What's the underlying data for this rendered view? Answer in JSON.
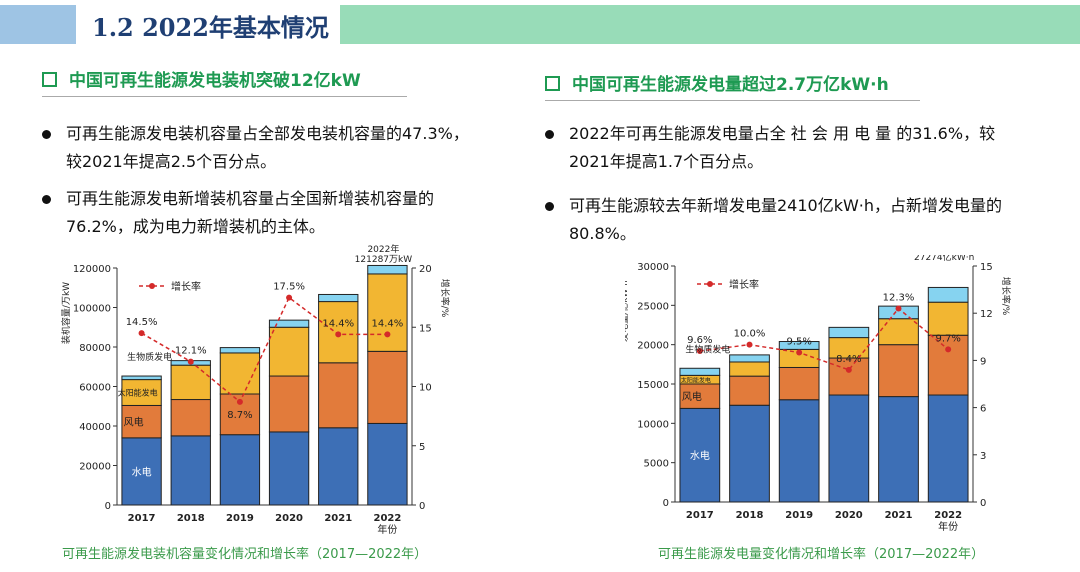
{
  "header": {
    "title": "1.2 2022年基本情况"
  },
  "left": {
    "subtitle": "中国可再生能源发电装机突破12亿kW",
    "bullets": [
      "可再生能源发电装机容量占全部发电装机容量的47.3%， 较2021年提高2.5个百分点。",
      "可再生能源发电新增装机容量占全国新增装机容量的76.2%，成为电力新增装机的主体。"
    ],
    "caption": "可再生能源发电装机容量变化情况和增长率（2017—2022年）"
  },
  "right": {
    "subtitle": "中国可再生能源发电量超过2.7万亿kW·h",
    "bullets": [
      "2022年可再生能源发电量占全 社 会 用 电 量 的31.6%，较2021年提高1.7个百分点。",
      "可再生能源较去年新增发电量2410亿kW·h，占新增发电量的80.8%。"
    ],
    "caption": "可再生能源发电量变化情况和增长率（2017—2022年）"
  },
  "colors": {
    "hydro": "#3d6fb6",
    "wind": "#e27b3b",
    "solar": "#f2b632",
    "biomass": "#86d3f0",
    "growth": "#d42a2a"
  },
  "chart_data": [
    {
      "type": "bar",
      "stacked": true,
      "categories": [
        "2017",
        "2018",
        "2019",
        "2020",
        "2021",
        "2022"
      ],
      "xlabel": "年份",
      "ylabel": "装机容量/万kW",
      "y2label": "增长率/%",
      "ylim": [
        0,
        120000
      ],
      "yticks": [
        0,
        20000,
        40000,
        60000,
        80000,
        100000,
        120000
      ],
      "y2lim": [
        0,
        20
      ],
      "y2ticks": [
        0,
        5,
        10,
        15,
        20
      ],
      "legend": "增长率",
      "legend_position": "top-left",
      "series": [
        {
          "name": "水电",
          "key": "hydro",
          "values": [
            34000,
            35000,
            35600,
            37000,
            39100,
            41300
          ]
        },
        {
          "name": "风电",
          "key": "wind",
          "values": [
            16400,
            18400,
            20600,
            28300,
            32900,
            36500
          ]
        },
        {
          "name": "太阳能发电",
          "key": "solar",
          "values": [
            13100,
            17400,
            20800,
            24700,
            31000,
            39200
          ]
        },
        {
          "name": "生物质发电",
          "key": "biomass",
          "values": [
            1800,
            2300,
            2700,
            3600,
            3600,
            4287
          ]
        }
      ],
      "growth": {
        "name": "增长率",
        "values": [
          14.5,
          12.1,
          8.7,
          17.5,
          14.4,
          14.4
        ],
        "labels": [
          "14.5%",
          "12.1%",
          "8.7%",
          "17.5%",
          "14.4%",
          "14.4%"
        ]
      },
      "annotation": [
        "2022年",
        "121287万kW"
      ]
    },
    {
      "type": "bar",
      "stacked": true,
      "categories": [
        "2017",
        "2018",
        "2019",
        "2020",
        "2021",
        "2022"
      ],
      "xlabel": "年份",
      "ylabel": "发电量/亿kW·h",
      "y2label": "增长率/%",
      "ylim": [
        0,
        30000
      ],
      "yticks": [
        0,
        5000,
        10000,
        15000,
        20000,
        25000,
        30000
      ],
      "y2lim": [
        0,
        15
      ],
      "y2ticks": [
        0,
        3,
        6,
        9,
        12,
        15
      ],
      "legend": "增长率",
      "legend_position": "top-left",
      "series": [
        {
          "name": "水电",
          "key": "hydro",
          "values": [
            11900,
            12300,
            13000,
            13600,
            13400,
            13600
          ]
        },
        {
          "name": "风电",
          "key": "wind",
          "values": [
            3100,
            3700,
            4100,
            4700,
            6600,
            7600
          ]
        },
        {
          "name": "太阳能发电",
          "key": "solar",
          "values": [
            1100,
            1800,
            2300,
            2600,
            3300,
            4200
          ]
        },
        {
          "name": "生物质发电",
          "key": "biomass",
          "values": [
            900,
            900,
            1000,
            1300,
            1600,
            1874
          ]
        }
      ],
      "growth": {
        "name": "增长率",
        "values": [
          9.6,
          10.0,
          9.5,
          8.4,
          12.3,
          9.7
        ],
        "labels": [
          "9.6%",
          "10.0%",
          "9.5%",
          "8.4%",
          "12.3%",
          "9.7%"
        ]
      },
      "annotation": [
        "2022年",
        "27274亿kW·h"
      ]
    }
  ]
}
